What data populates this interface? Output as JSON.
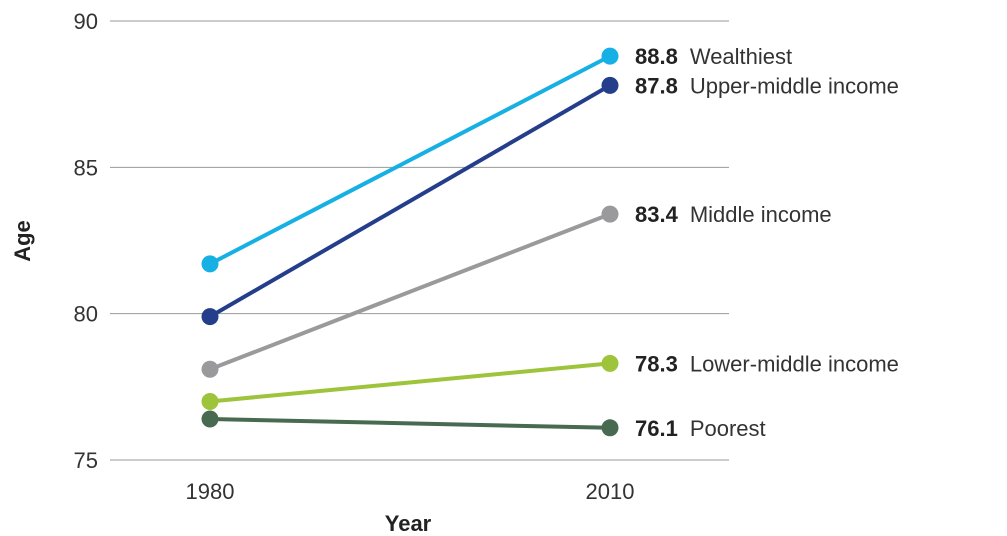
{
  "chart_data": {
    "type": "line",
    "title": "",
    "xlabel": "Year",
    "ylabel": "Age",
    "x": [
      "1980",
      "2010"
    ],
    "ylim": [
      75,
      90
    ],
    "yticks": [
      90,
      85,
      80,
      75
    ],
    "grid": true,
    "legend": "direct-labels-right",
    "series": [
      {
        "name": "Wealthiest",
        "values": [
          81.7,
          88.8
        ],
        "end_label": "88.8",
        "color": "#16b0e4"
      },
      {
        "name": "Upper-middle income",
        "values": [
          79.9,
          87.8
        ],
        "end_label": "87.8",
        "color": "#243e8c"
      },
      {
        "name": "Middle income",
        "values": [
          78.1,
          83.4
        ],
        "end_label": "83.4",
        "color": "#9a9a9c"
      },
      {
        "name": "Lower-middle income",
        "values": [
          77.0,
          78.3
        ],
        "end_label": "78.3",
        "color": "#9dc43b"
      },
      {
        "name": "Poorest",
        "values": [
          76.4,
          76.1
        ],
        "end_label": "76.1",
        "color": "#476a51"
      }
    ]
  }
}
